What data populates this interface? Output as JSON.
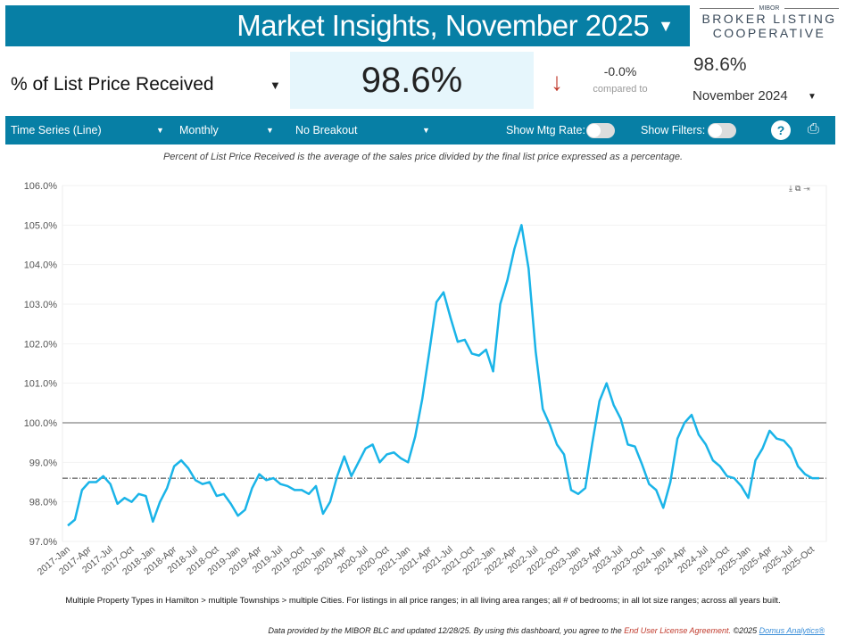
{
  "header": {
    "title": "Market Insights, November 2025",
    "logo_top": "MIBOR",
    "logo_line1": "BROKER LISTING",
    "logo_line2": "COOPERATIVE"
  },
  "metric": {
    "name": "% of List Price Received",
    "value": "98.6%",
    "change": "-0.0%",
    "compared_label": "compared to",
    "prior_value": "98.6%",
    "prior_period": "November 2024"
  },
  "toolbar": {
    "chart_type": "Time Series (Line)",
    "interval": "Monthly",
    "breakout": "No Breakout",
    "mtg_rate_label": "Show Mtg Rate:",
    "mtg_rate_on": false,
    "filters_label": "Show Filters:",
    "filters_on": false,
    "help": "?"
  },
  "description": "Percent of List Price Received is the average of the sales price divided by the final list price expressed as a percentage.",
  "filter_note": "Multiple Property Types in Hamilton > multiple Townships > multiple Cities. For listings in all price ranges; in all living area ranges; all # of bedrooms; in all lot size ranges; across all years built.",
  "footer": {
    "text": "Data provided by the MIBOR BLC and updated 12/28/25.  By using this dashboard, you agree to the ",
    "eula": "End User License Agreement.",
    "copyright": "  ©2025 ",
    "domus": "Domus Analytics®"
  },
  "colors": {
    "brand": "#077fa5",
    "line": "#1ab4e8",
    "down": "#c0392b"
  },
  "chart_data": {
    "type": "line",
    "title": "",
    "xlabel": "",
    "ylabel": "% of List Price Received",
    "ylim": [
      97,
      106
    ],
    "yticks": [
      "97.0%",
      "98.0%",
      "99.0%",
      "100.0%",
      "101.0%",
      "102.0%",
      "103.0%",
      "104.0%",
      "105.0%",
      "106.0%"
    ],
    "start": "2017-Jan",
    "end": "2025-Nov",
    "xticks": [
      "2017-Jan",
      "2017-Apr",
      "2017-Jul",
      "2017-Oct",
      "2018-Jan",
      "2018-Apr",
      "2018-Jul",
      "2018-Oct",
      "2019-Jan",
      "2019-Apr",
      "2019-Jul",
      "2019-Oct",
      "2020-Jan",
      "2020-Apr",
      "2020-Jul",
      "2020-Oct",
      "2021-Jan",
      "2021-Apr",
      "2021-Jul",
      "2021-Oct",
      "2022-Jan",
      "2022-Apr",
      "2022-Jul",
      "2022-Oct",
      "2023-Jan",
      "2023-Apr",
      "2023-Jul",
      "2023-Oct",
      "2024-Jan",
      "2024-Apr",
      "2024-Jul",
      "2024-Oct",
      "2025-Jan",
      "2025-Apr",
      "2025-Jul",
      "2025-Oct"
    ],
    "reference_lines": [
      {
        "value": 100.0,
        "style": "solid"
      },
      {
        "value": 98.6,
        "style": "dash-dot"
      }
    ],
    "series": [
      {
        "name": "% of List Price Received",
        "values": [
          97.4,
          97.55,
          98.3,
          98.5,
          98.5,
          98.65,
          98.45,
          97.95,
          98.1,
          98.0,
          98.2,
          98.15,
          97.5,
          98.0,
          98.35,
          98.9,
          99.05,
          98.85,
          98.55,
          98.45,
          98.5,
          98.15,
          98.2,
          97.95,
          97.65,
          97.8,
          98.35,
          98.7,
          98.55,
          98.6,
          98.45,
          98.4,
          98.3,
          98.3,
          98.2,
          98.4,
          97.7,
          98.0,
          98.65,
          99.15,
          98.65,
          99.0,
          99.35,
          99.45,
          99.0,
          99.2,
          99.25,
          99.1,
          99.0,
          99.65,
          100.6,
          101.8,
          103.05,
          103.3,
          102.65,
          102.05,
          102.1,
          101.75,
          101.7,
          101.85,
          101.3,
          103.0,
          103.6,
          104.4,
          105.0,
          103.9,
          101.8,
          100.35,
          99.95,
          99.45,
          99.2,
          98.3,
          98.2,
          98.35,
          99.5,
          100.55,
          101.0,
          100.45,
          100.1,
          99.45,
          99.4,
          98.95,
          98.45,
          98.3,
          97.85,
          98.5,
          99.6,
          100.0,
          100.2,
          99.7,
          99.45,
          99.05,
          98.9,
          98.65,
          98.6,
          98.4,
          98.1,
          99.05,
          99.35,
          99.8,
          99.6,
          99.55,
          99.35,
          98.9,
          98.7,
          98.6,
          98.6
        ]
      }
    ]
  }
}
